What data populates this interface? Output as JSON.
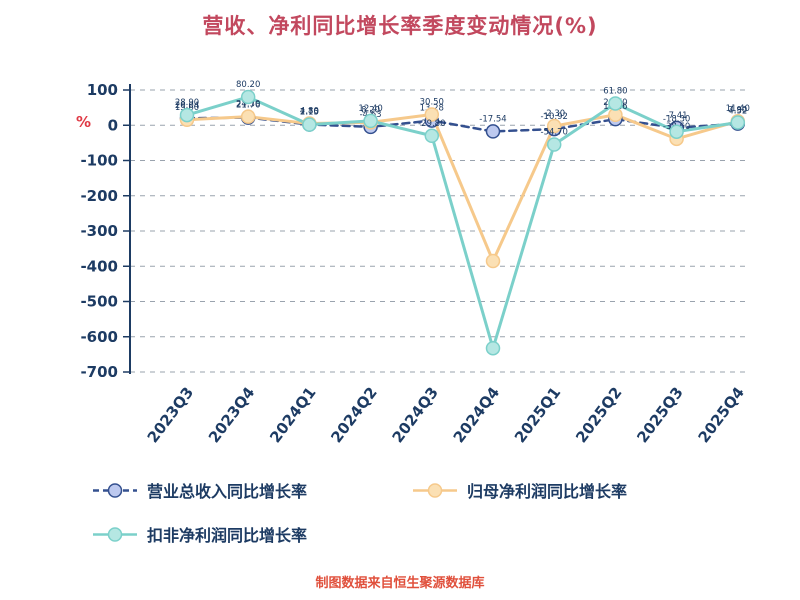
{
  "title": "营收、净利同比增长率季度变动情况(%)",
  "y_unit": "%",
  "footer": "制图数据来自恒生聚源数据库",
  "chart_data": {
    "type": "line",
    "categories": [
      "2023Q3",
      "2023Q4",
      "2024Q1",
      "2024Q2",
      "2024Q3",
      "2024Q4",
      "2025Q1",
      "2025Q2",
      "2025Q3",
      "2025Q4"
    ],
    "series": [
      {
        "name": "营业总收入同比增长率",
        "line_style": "dashed",
        "color": "#34508f",
        "marker_fill": "#bdc9ef",
        "values": [
          20.04,
          21.76,
          2.15,
          -4.63,
          13.28,
          -17.54,
          -10.92,
          17.26,
          -7.41,
          4.52
        ]
      },
      {
        "name": "归母净利润同比增长率",
        "line_style": "solid",
        "color": "#f6c98b",
        "marker_fill": "#fbe0b4",
        "values": [
          15.6,
          24.3,
          4.8,
          8.2,
          30.5,
          -385.2,
          -2.3,
          29.7,
          -38.6,
          11.4
        ]
      },
      {
        "name": "扣非净利润同比增长率",
        "line_style": "solid",
        "color": "#7bd0ca",
        "marker_fill": "#b5e7e3",
        "values": [
          28.9,
          80.2,
          1.7,
          12.4,
          -29.8,
          -632.5,
          -54.7,
          61.8,
          -18.3,
          7.9
        ]
      }
    ],
    "ylim": [
      -700,
      100
    ],
    "ytick_step": 100,
    "grid": "dashed-horizontal",
    "legend_position": "bottom",
    "axis_color": "#1d3b63",
    "label_color": "#1d3b63",
    "grid_color": "#9aa3ae",
    "title_color": "#c2485e",
    "unit_color": "#e03a46",
    "footer_color": "#e0503c"
  }
}
